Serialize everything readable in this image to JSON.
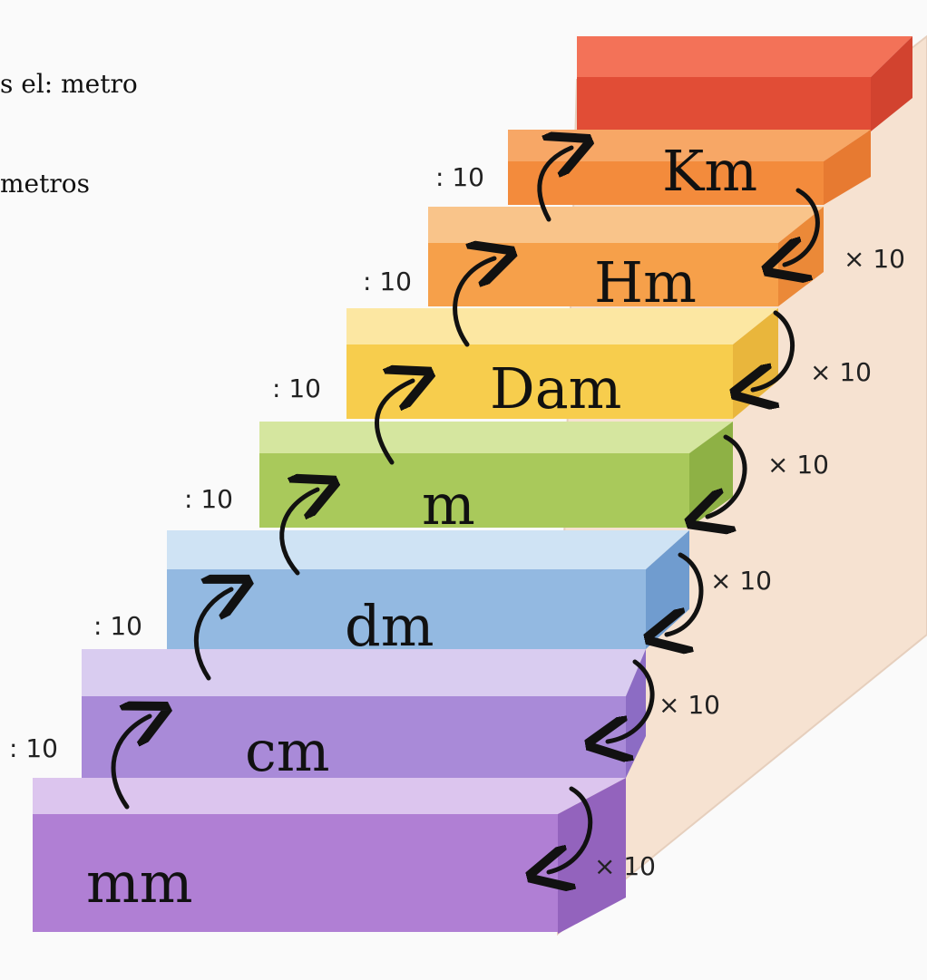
{
  "intro": {
    "line1": "s el: metro",
    "line2": "metros"
  },
  "colors": {
    "km": "#ef5a3c",
    "km_lower": "#f3893f",
    "hm": "#f6a24a",
    "dam": "#f7cf4f",
    "m": "#a6c85a",
    "dm": "#8fb7e0",
    "cm": "#a789d6",
    "mm": "#b083d6",
    "wall": "#f7e6d5"
  },
  "steps": [
    {
      "unit": "mm"
    },
    {
      "unit": "cm"
    },
    {
      "unit": "dm"
    },
    {
      "unit": "m"
    },
    {
      "unit": "Dam"
    },
    {
      "unit": "Hm"
    },
    {
      "unit": "Km"
    }
  ],
  "arrows": {
    "up_label": ": 10",
    "down_label": "× 10"
  }
}
